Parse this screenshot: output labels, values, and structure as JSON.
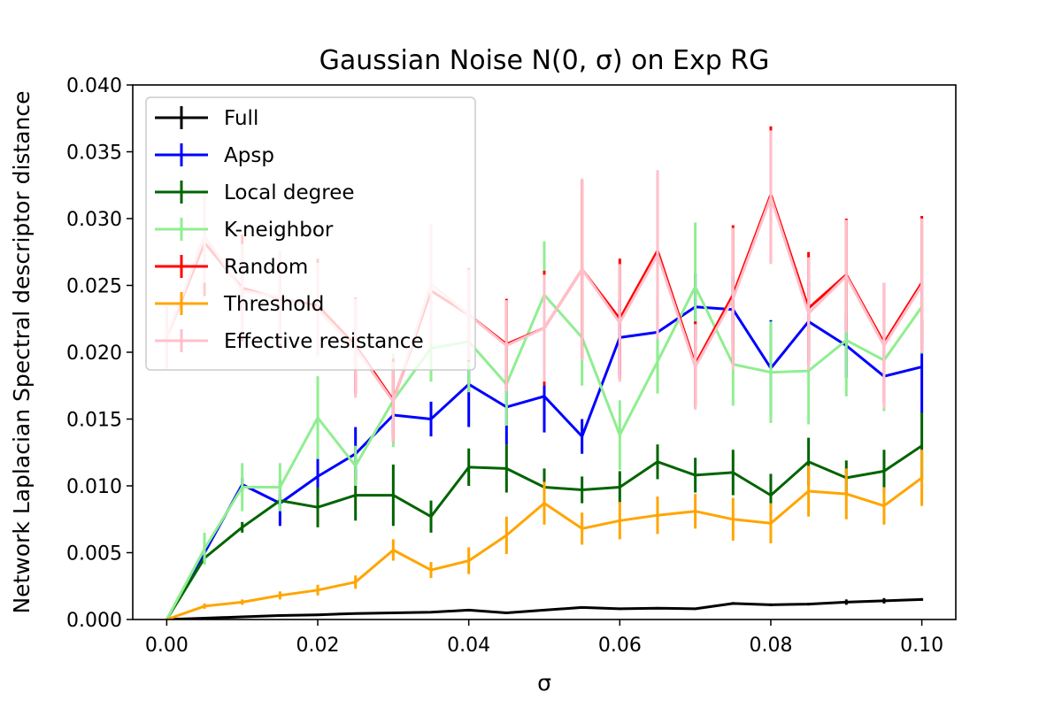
{
  "chart_data": {
    "type": "line",
    "title": "Gaussian Noise N(0, σ) on Exp RG",
    "xlabel": "σ",
    "ylabel": "Network Laplacian Spectral descriptor distance",
    "xlim": [
      -0.0045,
      0.1045
    ],
    "ylim": [
      0.0,
      0.04
    ],
    "xticks": [
      0.0,
      0.02,
      0.04,
      0.06,
      0.08,
      0.1
    ],
    "xtick_labels": [
      "0.00",
      "0.02",
      "0.04",
      "0.06",
      "0.08",
      "0.10"
    ],
    "yticks": [
      0.0,
      0.005,
      0.01,
      0.015,
      0.02,
      0.025,
      0.03,
      0.035,
      0.04
    ],
    "ytick_labels": [
      "0.000",
      "0.005",
      "0.010",
      "0.015",
      "0.020",
      "0.025",
      "0.030",
      "0.035",
      "0.040"
    ],
    "grid": false,
    "legend_position": "top-left",
    "x": [
      0.0,
      0.005,
      0.01,
      0.015,
      0.02,
      0.025,
      0.03,
      0.035,
      0.04,
      0.045,
      0.05,
      0.055,
      0.06,
      0.065,
      0.07,
      0.075,
      0.08,
      0.085,
      0.09,
      0.095,
      0.1
    ],
    "series": [
      {
        "name": "Full",
        "color": "#000000",
        "values": [
          0.0,
          0.0001,
          0.0002,
          0.0003,
          0.00035,
          0.00045,
          0.0005,
          0.00055,
          0.0007,
          0.0005,
          0.0007,
          0.0009,
          0.0008,
          0.00085,
          0.0008,
          0.0012,
          0.0011,
          0.00115,
          0.0013,
          0.0014,
          0.0015
        ],
        "errors": [
          0.0,
          3e-05,
          3e-05,
          4e-05,
          4e-05,
          4e-05,
          5e-05,
          5e-05,
          6e-05,
          5e-05,
          6e-05,
          8e-05,
          8e-05,
          8e-05,
          8e-05,
          0.0001,
          0.0001,
          0.0001,
          0.0002,
          0.0002,
          0.0001
        ]
      },
      {
        "name": "Apsp",
        "color": "#0000ff",
        "values": [
          0.0,
          0.005,
          0.0101,
          0.0087,
          0.0107,
          0.0124,
          0.0153,
          0.015,
          0.0176,
          0.0159,
          0.0167,
          0.0137,
          0.0211,
          0.0215,
          0.0234,
          0.0232,
          0.0188,
          0.0223,
          0.0205,
          0.0182,
          0.0189
        ],
        "errors": [
          0.0,
          0.0005,
          0.0005,
          0.0017,
          0.0015,
          0.002,
          0.0015,
          0.0013,
          0.0032,
          0.0028,
          0.0027,
          0.0013,
          0.0028,
          0.0027,
          0.0025,
          0.0025,
          0.0036,
          0.003,
          0.0024,
          0.002,
          0.0035
        ]
      },
      {
        "name": "Local degree",
        "color": "#006400",
        "values": [
          0.0,
          0.0046,
          0.0069,
          0.0089,
          0.0084,
          0.0093,
          0.0093,
          0.0077,
          0.0114,
          0.0113,
          0.0099,
          0.0097,
          0.0099,
          0.0118,
          0.0108,
          0.011,
          0.0093,
          0.0118,
          0.0106,
          0.0111,
          0.013
        ],
        "errors": [
          0.0,
          0.0004,
          0.0004,
          0.0005,
          0.0015,
          0.0019,
          0.0023,
          0.0012,
          0.0014,
          0.0018,
          0.0014,
          0.001,
          0.0012,
          0.0013,
          0.0013,
          0.0017,
          0.0016,
          0.0018,
          0.0013,
          0.0016,
          0.0025
        ]
      },
      {
        "name": "K-neighbor",
        "color": "#90ee90",
        "values": [
          0.0,
          0.0053,
          0.0099,
          0.0099,
          0.0151,
          0.0115,
          0.0164,
          0.0203,
          0.0208,
          0.0176,
          0.0243,
          0.0211,
          0.0138,
          0.0193,
          0.0249,
          0.0191,
          0.0185,
          0.0186,
          0.0209,
          0.0194,
          0.0234
        ],
        "errors": [
          0.0,
          0.0012,
          0.0018,
          0.0018,
          0.0031,
          0.0015,
          0.0035,
          0.0025,
          0.0038,
          0.0031,
          0.004,
          0.0036,
          0.0026,
          0.0024,
          0.0048,
          0.0031,
          0.0038,
          0.004,
          0.0042,
          0.0038,
          0.0035
        ]
      },
      {
        "name": "Random",
        "color": "#ff0000",
        "values": [
          0.0211,
          0.0282,
          0.0248,
          0.024,
          0.0235,
          0.0205,
          0.0164,
          0.0246,
          0.0228,
          0.0206,
          0.0218,
          0.0262,
          0.0225,
          0.0276,
          0.0191,
          0.0243,
          0.0318,
          0.0233,
          0.0258,
          0.0207,
          0.0252
        ],
        "errors": [
          0.0023,
          0.004,
          0.004,
          0.0035,
          0.0035,
          0.0036,
          0.0031,
          0.004,
          0.0035,
          0.0034,
          0.0043,
          0.0067,
          0.0045,
          0.006,
          0.0032,
          0.0052,
          0.0051,
          0.0042,
          0.0042,
          0.0045,
          0.005
        ]
      },
      {
        "name": "Threshold",
        "color": "#ffa500",
        "values": [
          0.0,
          0.001,
          0.0013,
          0.0018,
          0.0022,
          0.0028,
          0.0052,
          0.0037,
          0.0044,
          0.0063,
          0.0087,
          0.0068,
          0.0074,
          0.0078,
          0.0081,
          0.0075,
          0.0072,
          0.0096,
          0.0094,
          0.0085,
          0.0106
        ],
        "errors": [
          0.0,
          0.0002,
          0.0002,
          0.0003,
          0.0004,
          0.0005,
          0.0008,
          0.0006,
          0.001,
          0.0014,
          0.0016,
          0.0012,
          0.0014,
          0.0014,
          0.0013,
          0.0016,
          0.0015,
          0.0019,
          0.0019,
          0.0014,
          0.0021
        ]
      },
      {
        "name": "Effective resistance",
        "color": "#ffc0cb",
        "values": [
          0.0211,
          0.0287,
          0.0246,
          0.0241,
          0.0232,
          0.0203,
          0.0163,
          0.0251,
          0.0228,
          0.0205,
          0.0218,
          0.0262,
          0.0222,
          0.0273,
          0.0189,
          0.024,
          0.0316,
          0.0229,
          0.0257,
          0.0205,
          0.025
        ],
        "errors": [
          0.0023,
          0.0035,
          0.0035,
          0.0035,
          0.0035,
          0.0037,
          0.003,
          0.0045,
          0.0034,
          0.0034,
          0.004,
          0.0068,
          0.0044,
          0.0063,
          0.0032,
          0.0053,
          0.005,
          0.0042,
          0.0042,
          0.0047,
          0.005
        ]
      }
    ]
  }
}
